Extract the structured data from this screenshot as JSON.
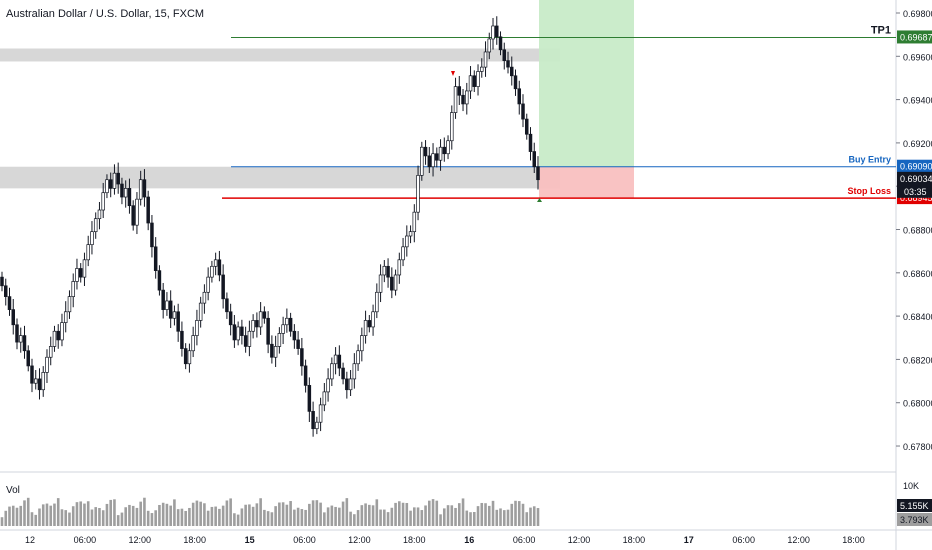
{
  "chart_data": {
    "type": "candlestick",
    "title": "Australian Dollar / U.S. Dollar, 15, FXCM",
    "y_axis": {
      "ticks": [
        "0.69800",
        "0.69600",
        "0.69400",
        "0.69200",
        "0.69000",
        "0.68800",
        "0.68600",
        "0.68400",
        "0.68200",
        "0.68000",
        "0.67800"
      ],
      "range": [
        0.6768,
        0.6986
      ]
    },
    "x_axis": {
      "ticks": [
        "12",
        "06:00",
        "12:00",
        "18:00",
        "15",
        "06:00",
        "12:00",
        "18:00",
        "16",
        "06:00",
        "12:00",
        "18:00",
        "17",
        "06:00",
        "12:00",
        "18:00"
      ]
    },
    "levels": [
      {
        "name": "TP1",
        "value": 0.69687,
        "price_label": "0.69687",
        "color": "#2e7d32"
      },
      {
        "name": "Buy Entry",
        "value": 0.6909,
        "price_label": "0.69090",
        "color": "#1565c0"
      },
      {
        "name": "Stop Loss",
        "value": 0.68945,
        "price_label": "0.68945",
        "color": "#e00000"
      }
    ],
    "current_price": {
      "value": 0.69034,
      "label": "0.69034",
      "countdown": "03:35"
    },
    "zones": [
      {
        "from": 0.69576,
        "to": 0.69636
      },
      {
        "from": 0.6899,
        "to": 0.6909
      }
    ],
    "series_close": [
      0.6854,
      0.6849,
      0.6843,
      0.6836,
      0.6828,
      0.6831,
      0.6824,
      0.6817,
      0.6809,
      0.6811,
      0.6806,
      0.6814,
      0.6821,
      0.6826,
      0.6833,
      0.6829,
      0.6837,
      0.6842,
      0.6849,
      0.6856,
      0.6862,
      0.6858,
      0.6866,
      0.6873,
      0.6879,
      0.6885,
      0.6889,
      0.6897,
      0.6903,
      0.6899,
      0.6906,
      0.6901,
      0.6895,
      0.6899,
      0.6891,
      0.6882,
      0.6894,
      0.6903,
      0.6895,
      0.6883,
      0.6872,
      0.6861,
      0.6852,
      0.6843,
      0.6847,
      0.6839,
      0.6842,
      0.6833,
      0.6825,
      0.6818,
      0.6824,
      0.6831,
      0.6838,
      0.6846,
      0.6851,
      0.6858,
      0.6863,
      0.6866,
      0.6859,
      0.6848,
      0.6842,
      0.6836,
      0.6829,
      0.6835,
      0.6831,
      0.6826,
      0.6833,
      0.6838,
      0.6835,
      0.6842,
      0.6839,
      0.6827,
      0.6821,
      0.6826,
      0.6832,
      0.6836,
      0.6839,
      0.6833,
      0.6829,
      0.6825,
      0.6817,
      0.6808,
      0.6796,
      0.6788,
      0.6791,
      0.6799,
      0.6805,
      0.6811,
      0.6818,
      0.6822,
      0.6816,
      0.6811,
      0.6806,
      0.6811,
      0.6818,
      0.6824,
      0.6831,
      0.6838,
      0.6835,
      0.6842,
      0.6851,
      0.6859,
      0.6863,
      0.6858,
      0.6852,
      0.6859,
      0.6866,
      0.6872,
      0.6877,
      0.6879,
      0.6888,
      0.6905,
      0.6918,
      0.6914,
      0.6909,
      0.6915,
      0.6912,
      0.6918,
      0.6915,
      0.6921,
      0.6934,
      0.6946,
      0.6942,
      0.6938,
      0.6944,
      0.6951,
      0.6946,
      0.6953,
      0.6955,
      0.6962,
      0.6968,
      0.6974,
      0.6969,
      0.6963,
      0.6958,
      0.6955,
      0.6951,
      0.6945,
      0.6938,
      0.6931,
      0.6924,
      0.6916,
      0.6909,
      0.6903
    ]
  },
  "volume": {
    "label": "Vol",
    "ticks": [
      "10K"
    ],
    "last_label": "5.155K",
    "ma_label": "3.793K"
  }
}
